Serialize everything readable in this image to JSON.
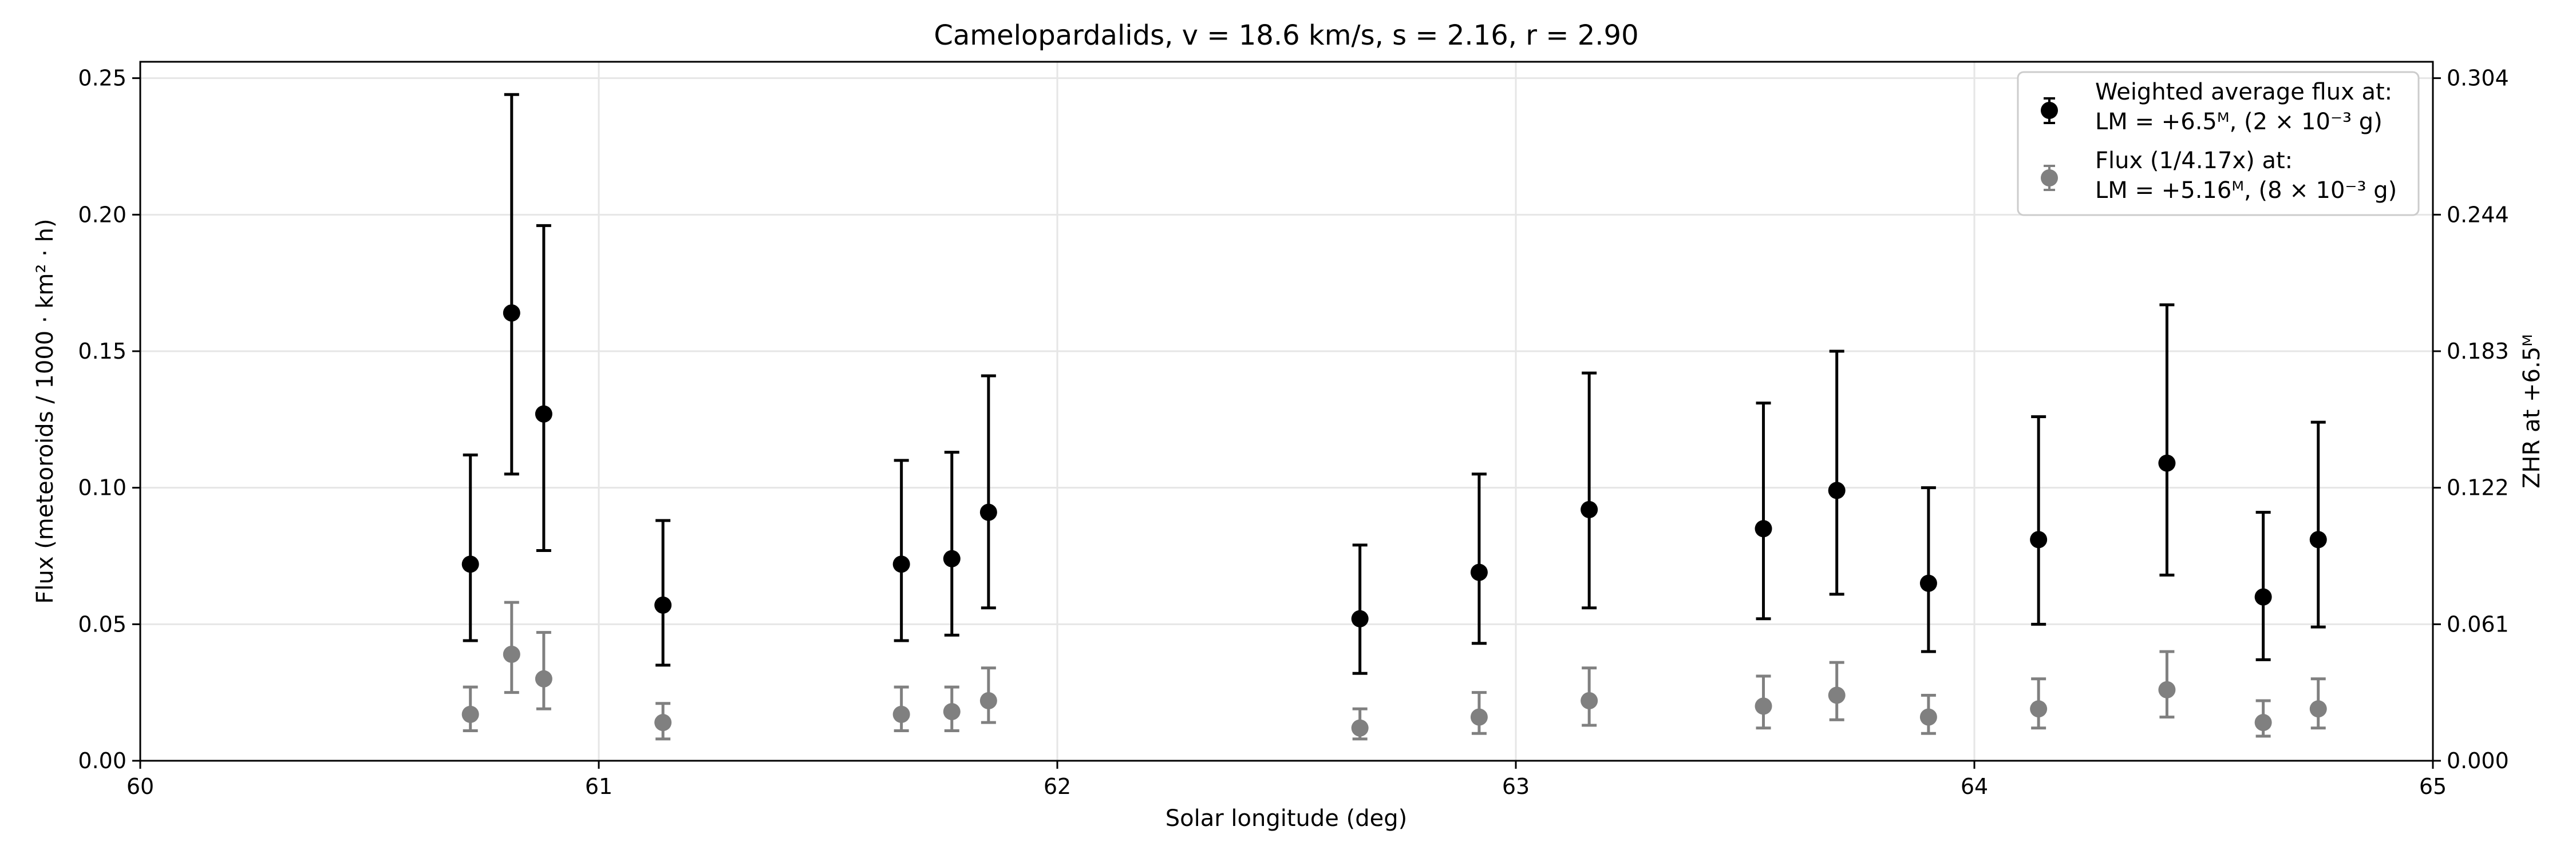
{
  "chart_data": {
    "type": "scatter",
    "title": "Camelopardalids, v = 18.6 km/s, s = 2.16, r = 2.90",
    "xlabel": "Solar longitude (deg)",
    "ylabel": "Flux (meteoroids / 1000 · km² · h)",
    "ylabel_right": "ZHR at +6.5ᴹ",
    "xlim": [
      60,
      65
    ],
    "ylim": [
      0,
      0.256
    ],
    "x_ticks": [
      "60",
      "61",
      "62",
      "63",
      "64",
      "65"
    ],
    "y_ticks": [
      "0.00",
      "0.05",
      "0.10",
      "0.15",
      "0.20",
      "0.25"
    ],
    "y2_ticks": [
      "0.000",
      "0.061",
      "0.122",
      "0.183",
      "0.244",
      "0.304"
    ],
    "grid": true,
    "legend_position": "top-right",
    "series": [
      {
        "name": "Weighted average flux at: LM = +6.5ᴹ, (2 × 10⁻³ g)",
        "color": "#000000",
        "points": [
          {
            "x": 60.72,
            "y": 0.072,
            "ylo": 0.044,
            "yhi": 0.112
          },
          {
            "x": 60.81,
            "y": 0.164,
            "ylo": 0.105,
            "yhi": 0.244
          },
          {
            "x": 60.88,
            "y": 0.127,
            "ylo": 0.077,
            "yhi": 0.196
          },
          {
            "x": 61.14,
            "y": 0.057,
            "ylo": 0.035,
            "yhi": 0.088
          },
          {
            "x": 61.66,
            "y": 0.072,
            "ylo": 0.044,
            "yhi": 0.11
          },
          {
            "x": 61.77,
            "y": 0.074,
            "ylo": 0.046,
            "yhi": 0.113
          },
          {
            "x": 61.85,
            "y": 0.091,
            "ylo": 0.056,
            "yhi": 0.141
          },
          {
            "x": 62.66,
            "y": 0.052,
            "ylo": 0.032,
            "yhi": 0.079
          },
          {
            "x": 62.92,
            "y": 0.069,
            "ylo": 0.043,
            "yhi": 0.105
          },
          {
            "x": 63.16,
            "y": 0.092,
            "ylo": 0.056,
            "yhi": 0.142
          },
          {
            "x": 63.54,
            "y": 0.085,
            "ylo": 0.052,
            "yhi": 0.131
          },
          {
            "x": 63.7,
            "y": 0.099,
            "ylo": 0.061,
            "yhi": 0.15
          },
          {
            "x": 63.9,
            "y": 0.065,
            "ylo": 0.04,
            "yhi": 0.1
          },
          {
            "x": 64.14,
            "y": 0.081,
            "ylo": 0.05,
            "yhi": 0.126
          },
          {
            "x": 64.42,
            "y": 0.109,
            "ylo": 0.068,
            "yhi": 0.167
          },
          {
            "x": 64.63,
            "y": 0.06,
            "ylo": 0.037,
            "yhi": 0.091
          },
          {
            "x": 64.75,
            "y": 0.081,
            "ylo": 0.049,
            "yhi": 0.124
          }
        ]
      },
      {
        "name": "Flux (1/4.17x) at: LM = +5.16ᴹ, (8 × 10⁻³ g)",
        "color": "#808080",
        "points": [
          {
            "x": 60.72,
            "y": 0.017,
            "ylo": 0.011,
            "yhi": 0.027
          },
          {
            "x": 60.81,
            "y": 0.039,
            "ylo": 0.025,
            "yhi": 0.058
          },
          {
            "x": 60.88,
            "y": 0.03,
            "ylo": 0.019,
            "yhi": 0.047
          },
          {
            "x": 61.14,
            "y": 0.014,
            "ylo": 0.008,
            "yhi": 0.021
          },
          {
            "x": 61.66,
            "y": 0.017,
            "ylo": 0.011,
            "yhi": 0.027
          },
          {
            "x": 61.77,
            "y": 0.018,
            "ylo": 0.011,
            "yhi": 0.027
          },
          {
            "x": 61.85,
            "y": 0.022,
            "ylo": 0.014,
            "yhi": 0.034
          },
          {
            "x": 62.66,
            "y": 0.012,
            "ylo": 0.008,
            "yhi": 0.019
          },
          {
            "x": 62.92,
            "y": 0.016,
            "ylo": 0.01,
            "yhi": 0.025
          },
          {
            "x": 63.16,
            "y": 0.022,
            "ylo": 0.013,
            "yhi": 0.034
          },
          {
            "x": 63.54,
            "y": 0.02,
            "ylo": 0.012,
            "yhi": 0.031
          },
          {
            "x": 63.7,
            "y": 0.024,
            "ylo": 0.015,
            "yhi": 0.036
          },
          {
            "x": 63.9,
            "y": 0.016,
            "ylo": 0.01,
            "yhi": 0.024
          },
          {
            "x": 64.14,
            "y": 0.019,
            "ylo": 0.012,
            "yhi": 0.03
          },
          {
            "x": 64.42,
            "y": 0.026,
            "ylo": 0.016,
            "yhi": 0.04
          },
          {
            "x": 64.63,
            "y": 0.014,
            "ylo": 0.009,
            "yhi": 0.022
          },
          {
            "x": 64.75,
            "y": 0.019,
            "ylo": 0.012,
            "yhi": 0.03
          }
        ]
      }
    ],
    "legend": {
      "entry1_line1": "Weighted average flux at:",
      "entry1_line2": "LM = +6.5ᴹ, (2 × 10⁻³ g)",
      "entry2_line1": "Flux (1/4.17x) at:",
      "entry2_line2": "LM = +5.16ᴹ, (8 × 10⁻³ g)"
    }
  }
}
